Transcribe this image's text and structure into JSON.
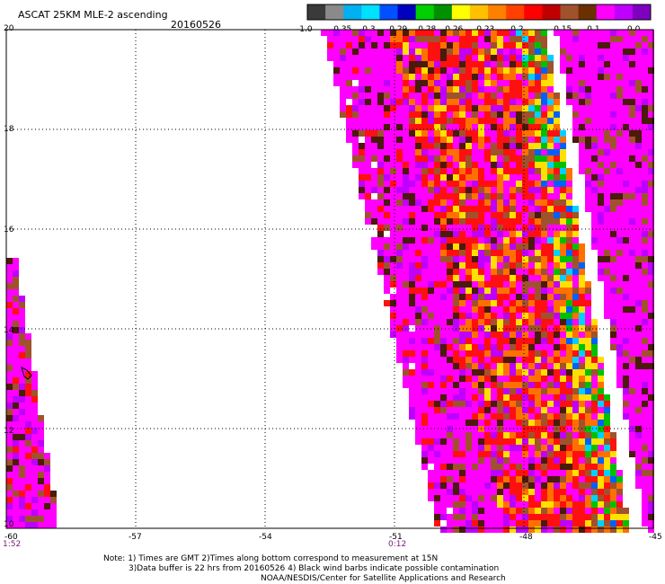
{
  "header": {
    "title": "ASCAT 25KM MLE-2 ascending",
    "date": "20160526"
  },
  "colorbar": {
    "colors": [
      "#3a3a3a",
      "#8a8a8a",
      "#00b0f0",
      "#00e0ff",
      "#0050ff",
      "#0000c0",
      "#00d000",
      "#009000",
      "#ffff00",
      "#ffc000",
      "#ff8000",
      "#ff4000",
      "#ff0000",
      "#c00000",
      "#a0522d",
      "#6b3000",
      "#ff00ff",
      "#c000ff",
      "#8000c0"
    ],
    "labels": [
      "-1.0",
      "-0.35",
      "-0.3",
      "-0.29",
      "-0.28",
      "-0.26",
      "-0.23",
      "-0.2",
      "-0.15",
      "-0.1",
      "0.0"
    ]
  },
  "chart_data": {
    "type": "heatmap",
    "title": "ASCAT 25KM MLE-2 ascending",
    "date": "20160526",
    "xlim": [
      -60,
      -45
    ],
    "ylim": [
      10,
      20
    ],
    "x_ticks": [
      "-60",
      "-57",
      "-54",
      "-51",
      "-48",
      "-45"
    ],
    "y_ticks": [
      "20",
      "18",
      "16",
      "14",
      "12",
      "10"
    ],
    "time_labels": [
      {
        "x": -60,
        "text": "1:52"
      },
      {
        "x": -51,
        "text": "0:12"
      }
    ],
    "grid": true,
    "palette": {
      "magenta": "#ff00ff",
      "purple": "#c000ff",
      "red": "#ff1010",
      "orange": "#ff7000",
      "yellow": "#ffe000",
      "brown": "#a0522d",
      "dark_brown": "#4a1a0a",
      "green": "#00c000",
      "blue": "#0060ff",
      "cyan": "#00d0ff"
    }
  },
  "notes": {
    "line1": "Note: 1) Times are GMT 2)Times along bottom correspond to measurement at 15N",
    "line2": "3)Data buffer is 22 hrs from 20160526 4) Black wind barbs indicate possible contamination",
    "line3": "NOAA/NESDIS/Center for Satellite Applications and Research"
  }
}
